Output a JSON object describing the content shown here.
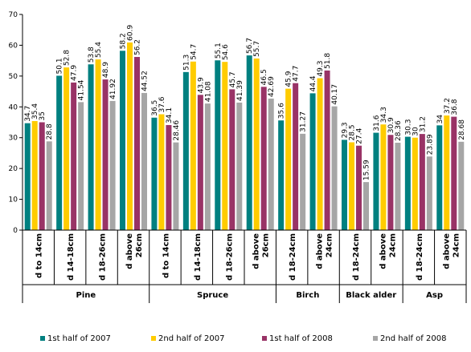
{
  "chart_data": {
    "type": "bar",
    "title": "",
    "xlabel": "",
    "ylabel": "",
    "ylim": [
      0,
      70
    ],
    "yticks": [
      0,
      10,
      20,
      30,
      40,
      50,
      60,
      70
    ],
    "grid": false,
    "legend_position": "bottom",
    "categories": [
      "d to 14cm",
      "d 14-18cm",
      "d 18-26cm",
      "d above 26cm",
      "d to 14cm",
      "d 14-18cm",
      "d 18-26cm",
      "d above 26cm",
      "d 18-24cm",
      "d above 24cm",
      "d 18-24cm",
      "d above 24cm",
      "d 18-24cm",
      "d above 24cm"
    ],
    "groups": [
      {
        "name": "Pine",
        "span": 4
      },
      {
        "name": "Spruce",
        "span": 4
      },
      {
        "name": "Birch",
        "span": 2
      },
      {
        "name": "Black alder",
        "span": 2
      },
      {
        "name": "Asp",
        "span": 2
      }
    ],
    "series": [
      {
        "name": "1st half of 2007",
        "color": "#008080",
        "values": [
          34.7,
          50.1,
          53.8,
          58.2,
          36.5,
          51.3,
          55.1,
          56.7,
          35.6,
          44.4,
          29.3,
          31.6,
          30.3,
          34
        ],
        "labels": [
          "34.7",
          "50.1",
          "53.8",
          "58.2",
          "36.5",
          "51.3",
          "55.1",
          "56.7",
          "35.6",
          "44.4",
          "29.3",
          "31.6",
          "30.3",
          "34"
        ]
      },
      {
        "name": "2nd half of 2007",
        "color": "#FFCC00",
        "values": [
          35.4,
          52.8,
          55.4,
          60.9,
          37.6,
          54.7,
          54.6,
          55.7,
          45.9,
          49.3,
          28.5,
          34.3,
          30,
          37.2
        ],
        "labels": [
          "35.4",
          "52.8",
          "55.4",
          "60.9",
          "37.6",
          "54.7",
          "54.6",
          "55.7",
          "45.9",
          "49.3",
          "28.5",
          "34.3",
          "30",
          "37.2"
        ]
      },
      {
        "name": "1st half of 2008",
        "color": "#993366",
        "values": [
          35,
          47.9,
          48.9,
          56.2,
          34.1,
          43.9,
          45.7,
          46.5,
          47.7,
          51.8,
          27.4,
          30.9,
          31.2,
          36.8
        ],
        "labels": [
          "35",
          "47.9",
          "48.9",
          "56.2",
          "34.1",
          "43.9",
          "45.7",
          "46.5",
          "47.7",
          "51.8",
          "27.4",
          "30.9",
          "31.2",
          "36.8"
        ]
      },
      {
        "name": "2nd half of  2008",
        "color": "#A6A6A6",
        "values": [
          28.8,
          41.54,
          41.92,
          44.52,
          28.46,
          41.08,
          41.39,
          42.69,
          31.27,
          40.17,
          15.59,
          28.36,
          23.89,
          28.68
        ],
        "labels": [
          "28.8",
          "41.54",
          "41.92",
          "44.52",
          "28.46",
          "41.08",
          "41.39",
          "42.69",
          "31.27",
          "40.17",
          "15.59",
          "28.36",
          "23.89",
          "28.68"
        ]
      }
    ]
  }
}
